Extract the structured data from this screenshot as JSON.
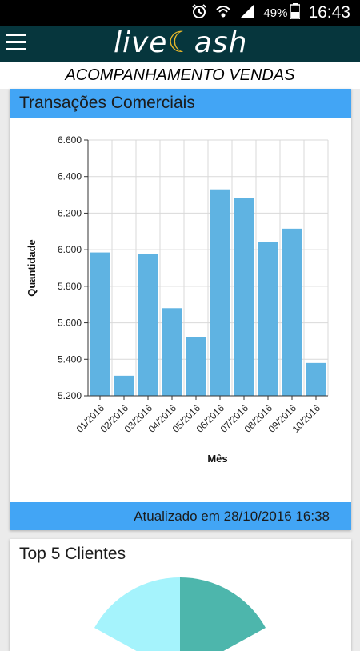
{
  "status_bar": {
    "battery": "49%",
    "time": "16:43",
    "icons": [
      "alarm-icon",
      "wifi-icon",
      "signal-icon",
      "battery-icon"
    ]
  },
  "app_bar": {
    "menu_icon": "hamburger-menu-icon",
    "logo_left": "live",
    "logo_mid": "☾",
    "logo_right": "ash",
    "colors": {
      "bar": "#06363d",
      "moon": "#e5b72b"
    }
  },
  "page_header": "ACOMPANHAMENTO VENDAS",
  "transactions_card": {
    "title": "Transações Comerciais",
    "updated": "Atualizado em 28/10/2016 16:38",
    "colors": {
      "header": "#42a5f5",
      "bar": "#5fb3e2"
    }
  },
  "chart_data": {
    "type": "bar",
    "categories": [
      "01/2016",
      "02/2016",
      "03/2016",
      "04/2016",
      "05/2016",
      "06/2016",
      "07/2016",
      "08/2016",
      "09/2016",
      "10/2016"
    ],
    "values": [
      5985,
      5310,
      5975,
      5680,
      5520,
      6330,
      6285,
      6040,
      6115,
      5380
    ],
    "ylim": [
      5200,
      6600
    ],
    "yticks": [
      "6.600",
      "6.400",
      "6.200",
      "6.000",
      "5.800",
      "5.600",
      "5.400",
      "5.200"
    ],
    "xlabel": "Mês",
    "ylabel": "Quantidade",
    "grid": true
  },
  "top_clients_card": {
    "title": "Top 5 Clientes",
    "pie_colors": [
      "#4db6ac",
      "#a5f3fc"
    ]
  }
}
